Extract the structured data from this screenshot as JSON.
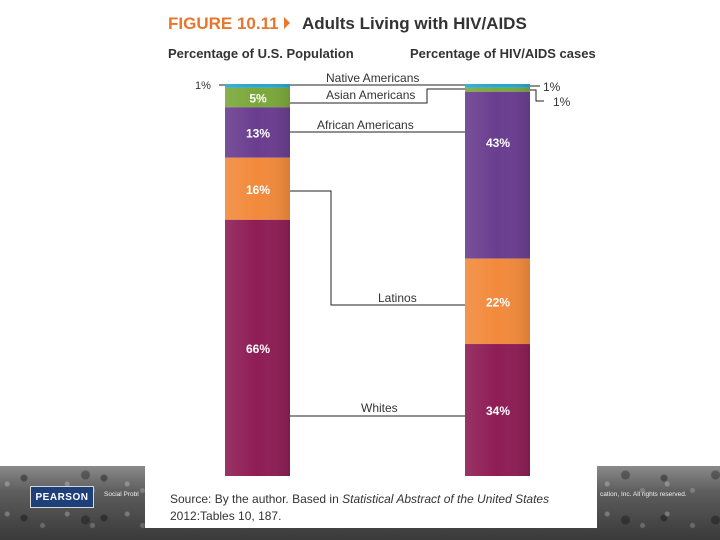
{
  "figure": {
    "number": "FIGURE 10.11",
    "title": "Adults Living with HIV/AIDS",
    "left_heading": "Percentage of U.S. Population",
    "right_heading": "Percentage of HIV/AIDS cases"
  },
  "chart_data": {
    "type": "bar",
    "stacked": true,
    "categories": [
      "Percentage of U.S. Population",
      "Percentage of HIV/AIDS cases"
    ],
    "series": [
      {
        "name": "Native Americans",
        "values": [
          1,
          1
        ],
        "color": "#2aa6c7"
      },
      {
        "name": "Asian Americans",
        "values": [
          5,
          1
        ],
        "color": "#7aa83a"
      },
      {
        "name": "African Americans",
        "values": [
          13,
          43
        ],
        "color": "#6a3d8f"
      },
      {
        "name": "Latinos",
        "values": [
          16,
          22
        ],
        "color": "#f28a3c"
      },
      {
        "name": "Whites",
        "values": [
          66,
          34
        ],
        "color": "#8e1d55"
      }
    ],
    "value_labels_left": [
      "1%",
      "5%",
      "13%",
      "16%",
      "66%"
    ],
    "value_labels_right": [
      "1%",
      "1%",
      "43%",
      "22%",
      "34%"
    ]
  },
  "source": {
    "prefix": "Source: By the author. Based in ",
    "italic": "Statistical Abstract of the United States",
    "suffix": "2012:Tables 10, 187."
  },
  "footer": {
    "logo": "PEARSON",
    "left_text": "Social Probl",
    "right_text": "cation, Inc. All rights reserved."
  }
}
